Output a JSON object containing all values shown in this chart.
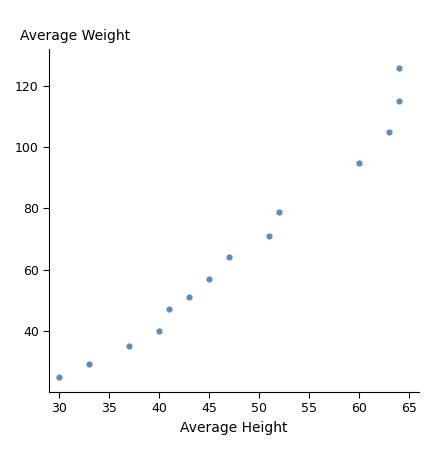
{
  "x": [
    30,
    33,
    37,
    40,
    41,
    43,
    45,
    47,
    51,
    52,
    60,
    63,
    64,
    64
  ],
  "y": [
    25,
    29,
    35,
    40,
    47,
    51,
    57,
    64,
    71,
    79,
    95,
    105,
    115,
    126
  ],
  "xlabel": "Average Height",
  "ylabel": "Average Weight",
  "xlim": [
    29,
    66
  ],
  "ylim": [
    20,
    132
  ],
  "xticks": [
    30,
    35,
    40,
    45,
    50,
    55,
    60,
    65
  ],
  "yticks": [
    40,
    60,
    80,
    100,
    120
  ],
  "dot_color": "#5b8db8",
  "dot_size": 12,
  "bg_color": "#ffffff"
}
